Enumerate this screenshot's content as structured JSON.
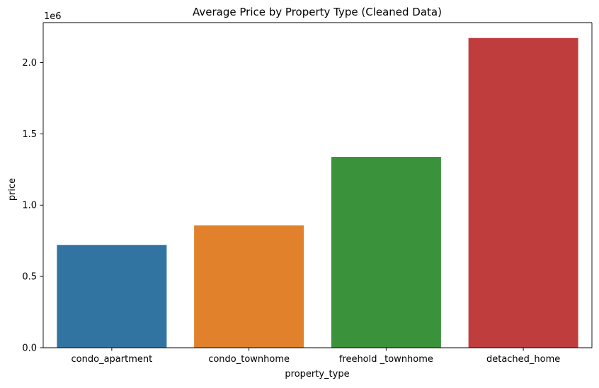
{
  "chart_data": {
    "type": "bar",
    "title": "Average Price by Property Type (Cleaned Data)",
    "xlabel": "property_type",
    "ylabel": "price",
    "scale_label": "1e6",
    "categories": [
      "condo_apartment",
      "condo_townhome",
      "freehold _townhome",
      "detached_home"
    ],
    "values": [
      720000,
      858000,
      1338000,
      2172000
    ],
    "colors": [
      "#3274a1",
      "#e1812c",
      "#3a923a",
      "#c03d3e"
    ],
    "ylim": [
      0,
      2280000
    ],
    "yticks": [
      0,
      500000,
      1000000,
      1500000,
      2000000
    ],
    "ytick_labels": [
      "0.0",
      "0.5",
      "1.0",
      "1.5",
      "2.0"
    ],
    "grid": false,
    "legend": "none"
  }
}
